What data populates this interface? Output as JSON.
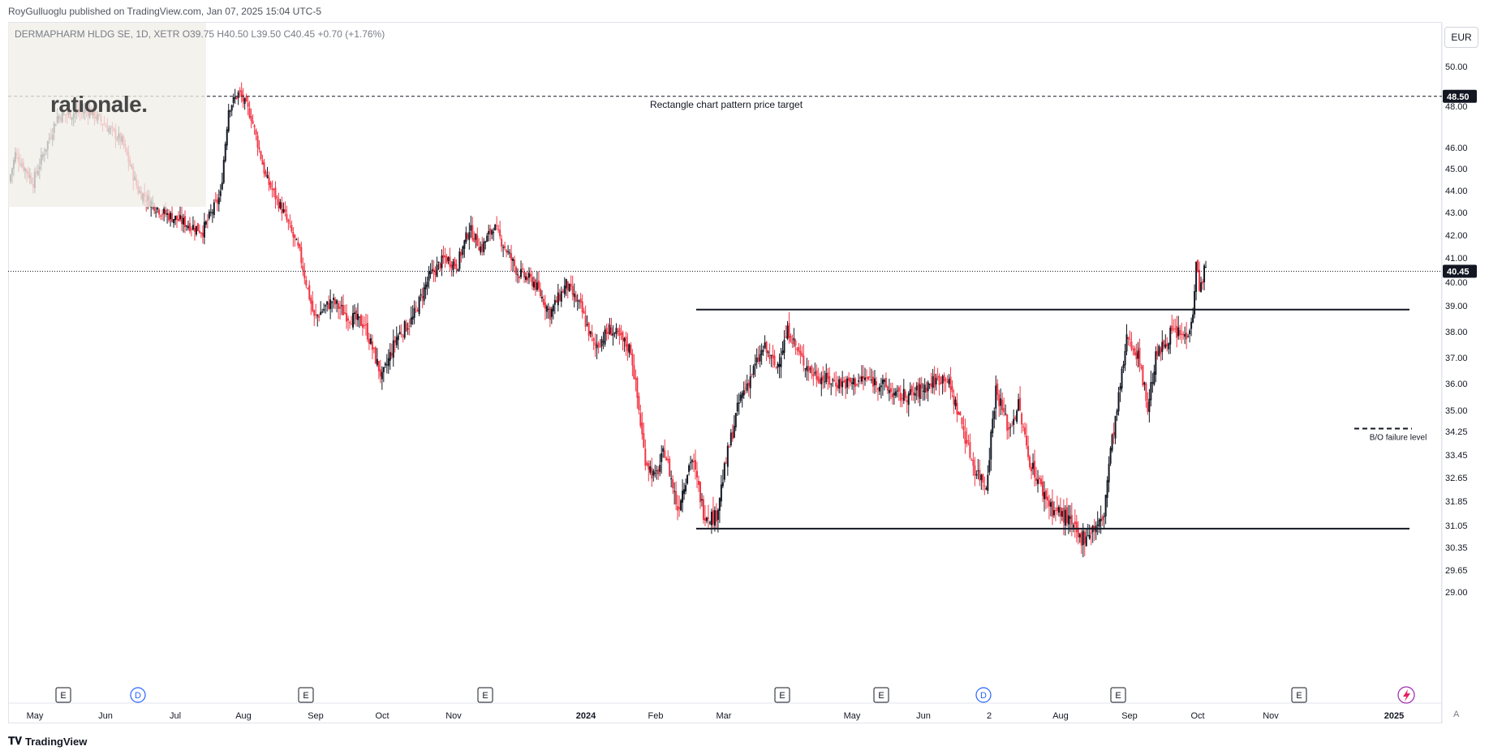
{
  "header": {
    "published_by": "RoyGulluoglu published on TradingView.com, Jan 07, 2025 15:04 UTC-5"
  },
  "symbol": {
    "line": "DERMAPHARM HLDG SE, 1D, XETR  O39.75  H40.50  L39.50  C40.45  +0.70 (+1.76%)"
  },
  "watermark": {
    "text": "rationale."
  },
  "currency": "EUR",
  "footer": {
    "brand": "TradingView",
    "brand_icon": "tradingview-logo-icon",
    "log_label": "A"
  },
  "colors": {
    "up": "#131722",
    "down": "#f23645",
    "grid": "#f0f3fa",
    "text": "#131722"
  },
  "chart_data": {
    "type": "candlestick",
    "price_range": [
      28.8,
      51.0
    ],
    "y_ticks": [
      "50.00",
      "48.00",
      "46.00",
      "45.00",
      "44.00",
      "43.00",
      "42.00",
      "41.00",
      "40.00",
      "39.00",
      "38.00",
      "37.00",
      "36.00",
      "35.00",
      "34.25",
      "33.45",
      "32.65",
      "31.85",
      "31.05",
      "30.35",
      "29.65",
      "29.00"
    ],
    "x_labels": [
      {
        "label": "May",
        "bold": false
      },
      {
        "label": "Jun",
        "bold": false
      },
      {
        "label": "Jul",
        "bold": false
      },
      {
        "label": "Aug",
        "bold": false
      },
      {
        "label": "Sep",
        "bold": false
      },
      {
        "label": "Oct",
        "bold": false
      },
      {
        "label": "Nov",
        "bold": false
      },
      {
        "label": "2024",
        "bold": true
      },
      {
        "label": "Feb",
        "bold": false
      },
      {
        "label": "Mar",
        "bold": false
      },
      {
        "label": "May",
        "bold": false
      },
      {
        "label": "Jun",
        "bold": false
      },
      {
        "label": "2",
        "bold": false
      },
      {
        "label": "Aug",
        "bold": false
      },
      {
        "label": "Sep",
        "bold": false
      },
      {
        "label": "Oct",
        "bold": false
      },
      {
        "label": "Nov",
        "bold": false
      },
      {
        "label": "2025",
        "bold": true
      }
    ],
    "price_badges": [
      {
        "value": "48.50",
        "price": 48.5
      },
      {
        "value": "40.45",
        "price": 40.45
      }
    ],
    "horizontal_lines": [
      {
        "name": "target-line",
        "price": 48.5,
        "style": "dashed",
        "label": "Rectangle chart pattern price target"
      },
      {
        "name": "last-price-line",
        "price": 40.45,
        "style": "dotted"
      },
      {
        "name": "resistance-line",
        "price": 38.85,
        "style": "solid"
      },
      {
        "name": "support-line",
        "price": 30.95,
        "style": "solid"
      },
      {
        "name": "bo-failure-line",
        "price": 34.35,
        "style": "dashed",
        "label": "B/O failure level"
      }
    ],
    "event_markers": [
      "E",
      "D",
      "E",
      "E",
      "E",
      "E",
      "D",
      "E",
      "E"
    ],
    "price_path_anchors": [
      [
        0,
        44.4
      ],
      [
        8,
        45.7
      ],
      [
        30,
        44.4
      ],
      [
        60,
        47.5
      ],
      [
        100,
        47.8
      ],
      [
        140,
        46.3
      ],
      [
        160,
        44.0
      ],
      [
        190,
        43.0
      ],
      [
        220,
        42.5
      ],
      [
        240,
        42.2
      ],
      [
        262,
        43.8
      ],
      [
        272,
        47.9
      ],
      [
        285,
        48.7
      ],
      [
        300,
        47.5
      ],
      [
        318,
        44.6
      ],
      [
        340,
        43.0
      ],
      [
        360,
        41.2
      ],
      [
        378,
        38.5
      ],
      [
        400,
        39.2
      ],
      [
        420,
        38.6
      ],
      [
        440,
        38.3
      ],
      [
        462,
        36.2
      ],
      [
        480,
        37.8
      ],
      [
        500,
        38.5
      ],
      [
        520,
        40.2
      ],
      [
        540,
        41.0
      ],
      [
        555,
        40.7
      ],
      [
        570,
        42.3
      ],
      [
        585,
        41.4
      ],
      [
        600,
        42.4
      ],
      [
        612,
        41.6
      ],
      [
        630,
        40.4
      ],
      [
        650,
        40.0
      ],
      [
        670,
        38.7
      ],
      [
        690,
        39.9
      ],
      [
        708,
        38.9
      ],
      [
        725,
        37.4
      ],
      [
        745,
        38.1
      ],
      [
        770,
        37.3
      ],
      [
        787,
        33.4
      ],
      [
        800,
        32.6
      ],
      [
        812,
        33.6
      ],
      [
        828,
        31.6
      ],
      [
        845,
        33.4
      ],
      [
        860,
        31.5
      ],
      [
        875,
        31.3
      ],
      [
        890,
        33.5
      ],
      [
        905,
        35.4
      ],
      [
        920,
        36.4
      ],
      [
        935,
        37.4
      ],
      [
        950,
        36.6
      ],
      [
        965,
        38.1
      ],
      [
        980,
        37.0
      ],
      [
        995,
        36.4
      ],
      [
        1015,
        36.1
      ],
      [
        1040,
        36.0
      ],
      [
        1060,
        36.2
      ],
      [
        1080,
        36.0
      ],
      [
        1100,
        35.5
      ],
      [
        1120,
        35.6
      ],
      [
        1140,
        36.0
      ],
      [
        1160,
        36.3
      ],
      [
        1180,
        34.5
      ],
      [
        1195,
        33.0
      ],
      [
        1210,
        32.4
      ],
      [
        1222,
        35.8
      ],
      [
        1238,
        34.3
      ],
      [
        1250,
        35.2
      ],
      [
        1262,
        33.4
      ],
      [
        1278,
        32.3
      ],
      [
        1292,
        31.6
      ],
      [
        1310,
        31.3
      ],
      [
        1325,
        30.6
      ],
      [
        1340,
        30.9
      ],
      [
        1355,
        31.2
      ],
      [
        1363,
        33.4
      ],
      [
        1372,
        35.0
      ],
      [
        1385,
        37.9
      ],
      [
        1400,
        36.9
      ],
      [
        1410,
        35.1
      ],
      [
        1420,
        37.0
      ],
      [
        1440,
        38.0
      ],
      [
        1458,
        37.8
      ],
      [
        1466,
        38.8
      ],
      [
        1470,
        40.7
      ],
      [
        1475,
        39.7
      ],
      [
        1480,
        40.45
      ]
    ]
  }
}
